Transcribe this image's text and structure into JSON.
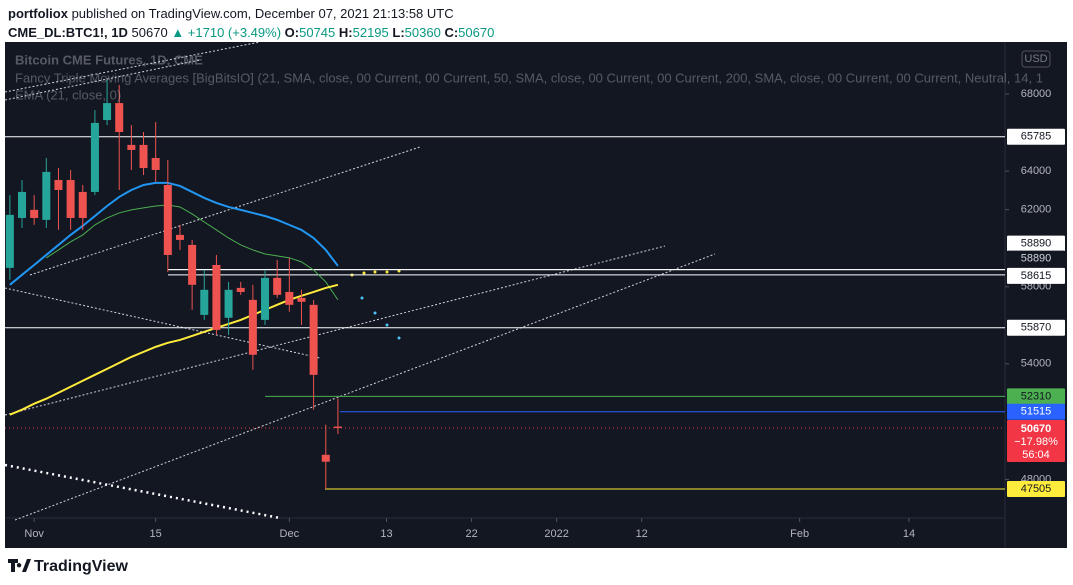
{
  "header": {
    "author": "portfoliox",
    "published": "published on TradingView.com, December 07, 2021 21:13:58 UTC",
    "symbol": "CME_DL:BTC1!, 1D",
    "last": "50670",
    "change": "▲ +1710 (+3.49%)",
    "ohlc": [
      {
        "label": "O:",
        "value": "50745"
      },
      {
        "label": "H:",
        "value": "52195"
      },
      {
        "label": "L:",
        "value": "50360"
      },
      {
        "label": "C:",
        "value": "50670"
      }
    ]
  },
  "legend": {
    "title": "Bitcoin CME Futures, 1D, CME",
    "indicator": "Fancy Triple Moving Averages [BigBitsIO] (21, SMA, close, 00 Current, 00 Current, 50, SMA, close, 00 Current, 00 Current, 200, SMA, close, 00 Current, 00 Current, Neutral, 14, 1",
    "ema": "EMA (21, close, 0)"
  },
  "chart_data": {
    "type": "candlestick",
    "up_color": "#26a69a",
    "down_color": "#ef5350",
    "currency": "USD",
    "candles": [
      {
        "open": 58980,
        "high": 62760,
        "low": 58360,
        "close": 61730
      },
      {
        "open": 61570,
        "high": 63540,
        "low": 61050,
        "close": 62920
      },
      {
        "open": 61990,
        "high": 62760,
        "low": 61210,
        "close": 61570
      },
      {
        "open": 61470,
        "high": 64680,
        "low": 61050,
        "close": 63960
      },
      {
        "open": 63540,
        "high": 64160,
        "low": 60950,
        "close": 63020
      },
      {
        "open": 63540,
        "high": 64060,
        "low": 60950,
        "close": 61570
      },
      {
        "open": 62920,
        "high": 63280,
        "low": 60950,
        "close": 61570
      },
      {
        "open": 62920,
        "high": 67170,
        "low": 62760,
        "close": 66500
      },
      {
        "open": 66650,
        "high": 68730,
        "low": 66390,
        "close": 67530
      },
      {
        "open": 67530,
        "high": 68470,
        "low": 63020,
        "close": 66030
      },
      {
        "open": 65360,
        "high": 66390,
        "low": 64060,
        "close": 65100
      },
      {
        "open": 65360,
        "high": 66030,
        "low": 63800,
        "close": 64160
      },
      {
        "open": 64680,
        "high": 66550,
        "low": 63440,
        "close": 64060
      },
      {
        "open": 63280,
        "high": 64580,
        "low": 58770,
        "close": 59650
      },
      {
        "open": 60690,
        "high": 61210,
        "low": 59910,
        "close": 60430
      },
      {
        "open": 60170,
        "high": 60430,
        "low": 56800,
        "close": 58100
      },
      {
        "open": 56540,
        "high": 58870,
        "low": 56280,
        "close": 57840
      },
      {
        "open": 59130,
        "high": 59650,
        "low": 55500,
        "close": 55760
      },
      {
        "open": 56390,
        "high": 58250,
        "low": 55500,
        "close": 57840
      },
      {
        "open": 57940,
        "high": 58250,
        "low": 57580,
        "close": 57730
      },
      {
        "open": 57320,
        "high": 58100,
        "low": 53690,
        "close": 54470
      },
      {
        "open": 56280,
        "high": 58870,
        "low": 56020,
        "close": 58460
      },
      {
        "open": 58460,
        "high": 59390,
        "low": 57420,
        "close": 57580
      },
      {
        "open": 57730,
        "high": 59500,
        "low": 56700,
        "close": 57060
      },
      {
        "open": 57420,
        "high": 57840,
        "low": 56020,
        "close": 57220
      },
      {
        "open": 57060,
        "high": 57320,
        "low": 51620,
        "close": 53430
      },
      {
        "open": 49280,
        "high": 50840,
        "low": 47505,
        "close": 48920
      },
      {
        "open": 50745,
        "high": 52195,
        "low": 50360,
        "close": 50670
      }
    ],
    "series": [
      {
        "color": "#2196f3",
        "values": [
          58100,
          58620,
          59130,
          59650,
          60170,
          60690,
          61160,
          61670,
          62190,
          62660,
          63020,
          63280,
          63390,
          63390,
          63230,
          62920,
          62610,
          62350,
          62140,
          61990,
          61830,
          61670,
          61470,
          61210,
          60950,
          60530,
          59910,
          59080
        ]
      },
      {
        "color": "#4caf50",
        "values": [
          null,
          null,
          null,
          59500,
          59910,
          60330,
          60690,
          61210,
          61570,
          61830,
          61990,
          62090,
          62190,
          62240,
          62140,
          61780,
          61360,
          60950,
          60530,
          60170,
          59910,
          59700,
          59600,
          59500,
          59290,
          58870,
          58250,
          57320
        ]
      },
      {
        "color": "#ffeb3b",
        "values": [
          51360,
          51620,
          51930,
          52190,
          52500,
          52810,
          53120,
          53430,
          53740,
          54050,
          54360,
          54620,
          54880,
          55090,
          55240,
          55450,
          55660,
          55870,
          56070,
          56280,
          56540,
          56800,
          57060,
          57320,
          57530,
          57730,
          57940,
          58100
        ]
      }
    ],
    "hlines": [
      {
        "value": 65785,
        "color": "#ffffff",
        "label_bg": "#ffffff",
        "label_color": "#131722"
      },
      {
        "value": 58890,
        "color": "#ffffff",
        "label_bg": "#ffffff",
        "label_color": "#131722"
      },
      {
        "value": 58890,
        "color": "#ffffff",
        "label_bg": "#131722",
        "label_color": "#d1d4dc"
      },
      {
        "value": 58615,
        "color": "#ffffff",
        "label_bg": "#ffffff",
        "label_color": "#131722"
      },
      {
        "value": 55870,
        "color": "#ffffff",
        "label_bg": "#ffffff",
        "label_color": "#131722"
      },
      {
        "value": 52310,
        "color": "#4caf50",
        "label_bg": "#4caf50",
        "label_color": "#131722"
      },
      {
        "value": 51515,
        "color": "#2962ff",
        "label_bg": "#2962ff",
        "label_color": "#ffffff"
      },
      {
        "value": 47505,
        "color": "#ffeb3b",
        "label_bg": "#ffeb3b",
        "label_color": "#131722"
      }
    ],
    "current": {
      "value": 50670,
      "change": "−17.98%",
      "countdown": "56:04",
      "color": "#f23645"
    },
    "xlim": [
      -0.4,
      81.9
    ],
    "xticks": [
      {
        "value": 2,
        "label": "Nov"
      },
      {
        "value": 12,
        "label": "15"
      },
      {
        "value": 23,
        "label": "Dec"
      },
      {
        "value": 31,
        "label": "13"
      },
      {
        "value": 38,
        "label": "22"
      },
      {
        "value": 45,
        "label": "2022"
      },
      {
        "value": 52,
        "label": "12"
      },
      {
        "value": 65,
        "label": "Feb"
      },
      {
        "value": 74,
        "label": "14"
      }
    ],
    "ylim": [
      46000,
      70700
    ],
    "yticks": [
      48000,
      54000,
      58000,
      62000,
      64000,
      68000
    ],
    "grid": false
  },
  "footer": {
    "brand": "TradingView"
  }
}
